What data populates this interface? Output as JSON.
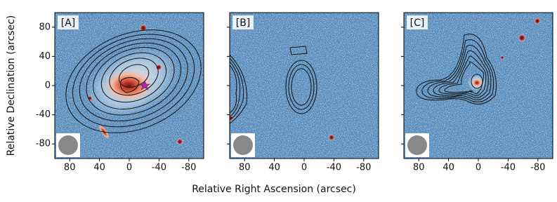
{
  "figure": {
    "xlabel": "Relative Right Ascension (arcsec)",
    "ylabel": "Relative Declination (arcsec)"
  },
  "chart_data": [
    {
      "type": "image",
      "label": "[A]",
      "xlim": [
        100,
        -100
      ],
      "ylim": [
        -100,
        100
      ],
      "xticks": [
        80,
        40,
        0,
        -40,
        -80
      ],
      "yticks": [
        80,
        40,
        0,
        -40,
        -80
      ]
    },
    {
      "type": "image",
      "label": "[B]",
      "xlim": [
        100,
        -100
      ],
      "ylim": [
        -100,
        100
      ],
      "xticks": [
        80,
        40,
        0,
        -40,
        -80
      ],
      "yticks": [
        80,
        40,
        0,
        -40,
        -80
      ]
    },
    {
      "type": "image",
      "label": "[C]",
      "xlim": [
        100,
        -100
      ],
      "ylim": [
        -100,
        100
      ],
      "xticks": [
        80,
        40,
        0,
        -40,
        -80
      ],
      "yticks": [
        80,
        40,
        0,
        -40,
        -80
      ]
    }
  ]
}
